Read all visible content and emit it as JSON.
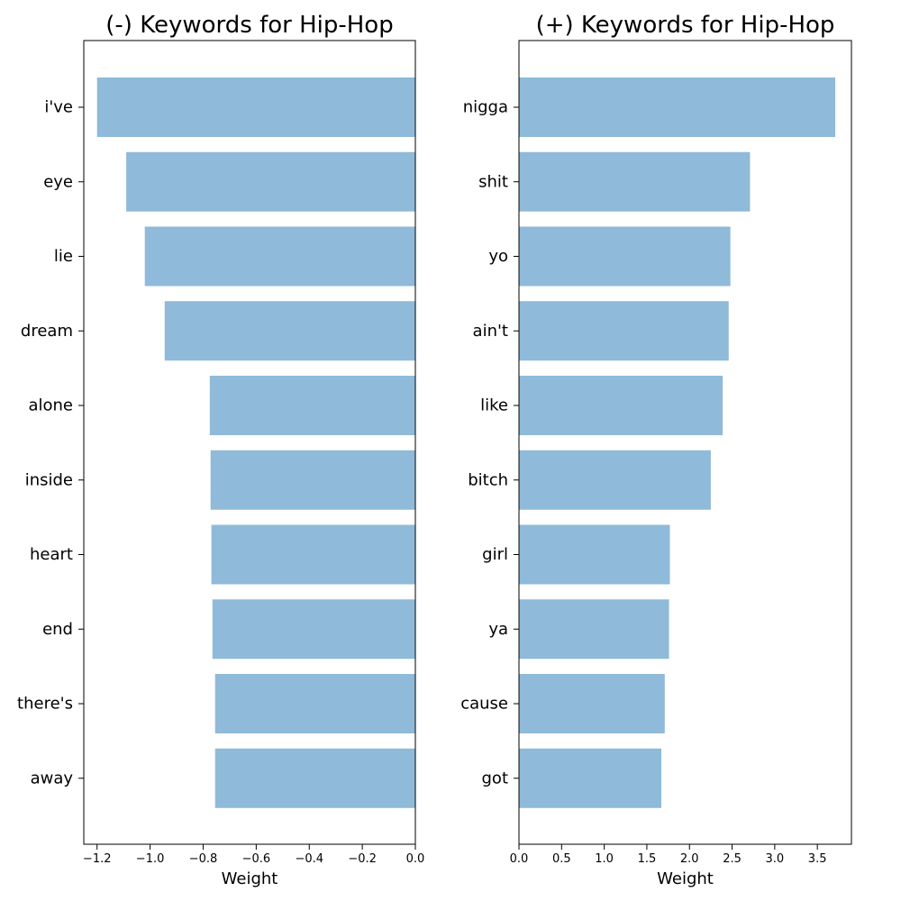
{
  "chart_data": [
    {
      "type": "bar",
      "orientation": "horizontal",
      "title": "(-) Keywords for Hip-Hop",
      "xlabel": "Weight",
      "ylabel": "",
      "categories": [
        "i've",
        "eye",
        "lie",
        "dream",
        "alone",
        "inside",
        "heart",
        "end",
        "there's",
        "away"
      ],
      "values": [
        -1.2,
        -1.09,
        -1.02,
        -0.945,
        -0.775,
        -0.772,
        -0.769,
        -0.765,
        -0.755,
        -0.755
      ],
      "xlim": [
        -1.25,
        0.0
      ],
      "xticks": [
        -1.2,
        -1.0,
        -0.8,
        -0.6,
        -0.4,
        -0.2,
        0.0
      ],
      "xtick_labels": [
        "−1.2",
        "−1.0",
        "−0.8",
        "−0.6",
        "−0.4",
        "−0.2",
        "0.0"
      ],
      "bar_color": "#8fbad9",
      "grid": false
    },
    {
      "type": "bar",
      "orientation": "horizontal",
      "title": "(+) Keywords for Hip-Hop",
      "xlabel": "Weight",
      "ylabel": "",
      "categories": [
        "nigga",
        "shit",
        "yo",
        "ain't",
        "like",
        "bitch",
        "girl",
        "ya",
        "cause",
        "got"
      ],
      "values": [
        3.71,
        2.71,
        2.48,
        2.46,
        2.39,
        2.25,
        1.77,
        1.76,
        1.71,
        1.67
      ],
      "xlim": [
        0.0,
        3.9
      ],
      "xticks": [
        0.0,
        0.5,
        1.0,
        1.5,
        2.0,
        2.5,
        3.0,
        3.5
      ],
      "xtick_labels": [
        "0.0",
        "0.5",
        "1.0",
        "1.5",
        "2.0",
        "2.5",
        "3.0",
        "3.5"
      ],
      "bar_color": "#8fbad9",
      "grid": false
    }
  ]
}
